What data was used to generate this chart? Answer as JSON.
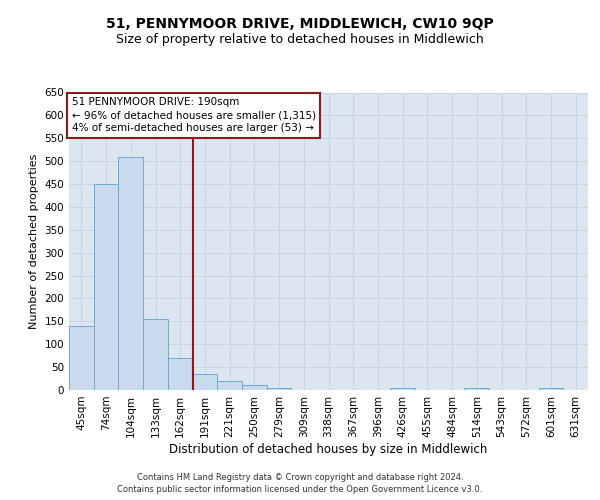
{
  "title1": "51, PENNYMOOR DRIVE, MIDDLEWICH, CW10 9QP",
  "title2": "Size of property relative to detached houses in Middlewich",
  "xlabel": "Distribution of detached houses by size in Middlewich",
  "ylabel": "Number of detached properties",
  "categories": [
    "45sqm",
    "74sqm",
    "104sqm",
    "133sqm",
    "162sqm",
    "191sqm",
    "221sqm",
    "250sqm",
    "279sqm",
    "309sqm",
    "338sqm",
    "367sqm",
    "396sqm",
    "426sqm",
    "455sqm",
    "484sqm",
    "514sqm",
    "543sqm",
    "572sqm",
    "601sqm",
    "631sqm"
  ],
  "values": [
    140,
    450,
    510,
    155,
    70,
    35,
    20,
    10,
    5,
    0,
    0,
    0,
    0,
    5,
    0,
    0,
    5,
    0,
    0,
    5,
    0
  ],
  "bar_color": "#c9d9ee",
  "bar_edge_color": "#6aaccf",
  "grid_color": "#c8d4e4",
  "background_color": "#dce6f1",
  "vline_color": "#8b1a1a",
  "annotation_line1": "51 PENNYMOOR DRIVE: 190sqm",
  "annotation_line2": "← 96% of detached houses are smaller (1,315)",
  "annotation_line3": "4% of semi-detached houses are larger (53) →",
  "annotation_box_edge": "#8b1a1a",
  "ylim": [
    0,
    650
  ],
  "yticks": [
    0,
    50,
    100,
    150,
    200,
    250,
    300,
    350,
    400,
    450,
    500,
    550,
    600,
    650
  ],
  "footer1": "Contains HM Land Registry data © Crown copyright and database right 2024.",
  "footer2": "Contains public sector information licensed under the Open Government Licence v3.0.",
  "title1_fontsize": 10,
  "title2_fontsize": 9,
  "ylabel_fontsize": 8,
  "xlabel_fontsize": 8.5,
  "tick_fontsize": 7.5,
  "annotation_fontsize": 7.5,
  "footer_fontsize": 6
}
